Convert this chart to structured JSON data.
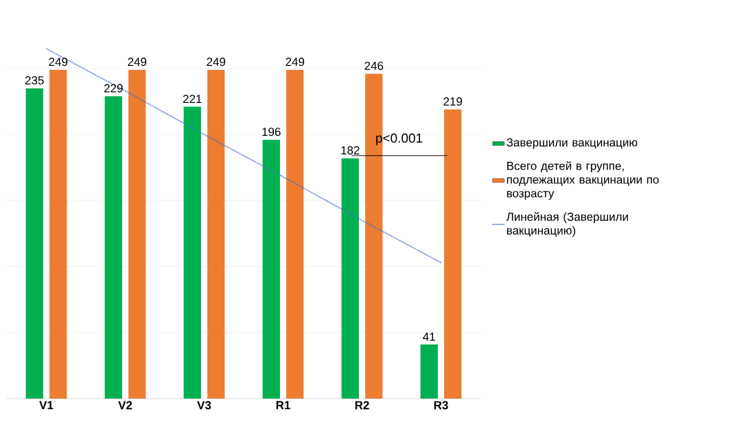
{
  "chart_data": {
    "type": "bar",
    "categories": [
      "V1",
      "V2",
      "V3",
      "R1",
      "R2",
      "R3"
    ],
    "series": [
      {
        "name": "Завершили вакцинацию",
        "color": "#00b050",
        "values": [
          235,
          229,
          221,
          196,
          182,
          41
        ],
        "value_labels": [
          "235",
          "229",
          "221",
          "196",
          "182",
          "41"
        ]
      },
      {
        "name": "Всего детей в группе, подлежащих вакцинации по возрасту",
        "color": "#ed7d31",
        "values": [
          249,
          249,
          249,
          249,
          246,
          219
        ],
        "value_labels": [
          "249",
          "249",
          "249",
          "249",
          "246",
          "219"
        ]
      },
      {
        "name": "Линейная (Завершили вакцинацию)",
        "type": "line",
        "color": "#4472c4",
        "line_style": "dotted",
        "values": [
          265,
          233,
          200,
          168,
          135,
          103
        ]
      }
    ],
    "yticks": [
      {
        "value": 0,
        "label": null
      },
      {
        "value": 50,
        "label": null
      },
      {
        "value": 100,
        "label": null
      },
      {
        "value": 150,
        "label": null
      },
      {
        "value": 200,
        "label": null
      },
      {
        "value": 250,
        "label": null
      }
    ],
    "tick_labels": "x",
    "grid": "y",
    "legend": "right",
    "annotations": [
      "p<0.001"
    ]
  }
}
